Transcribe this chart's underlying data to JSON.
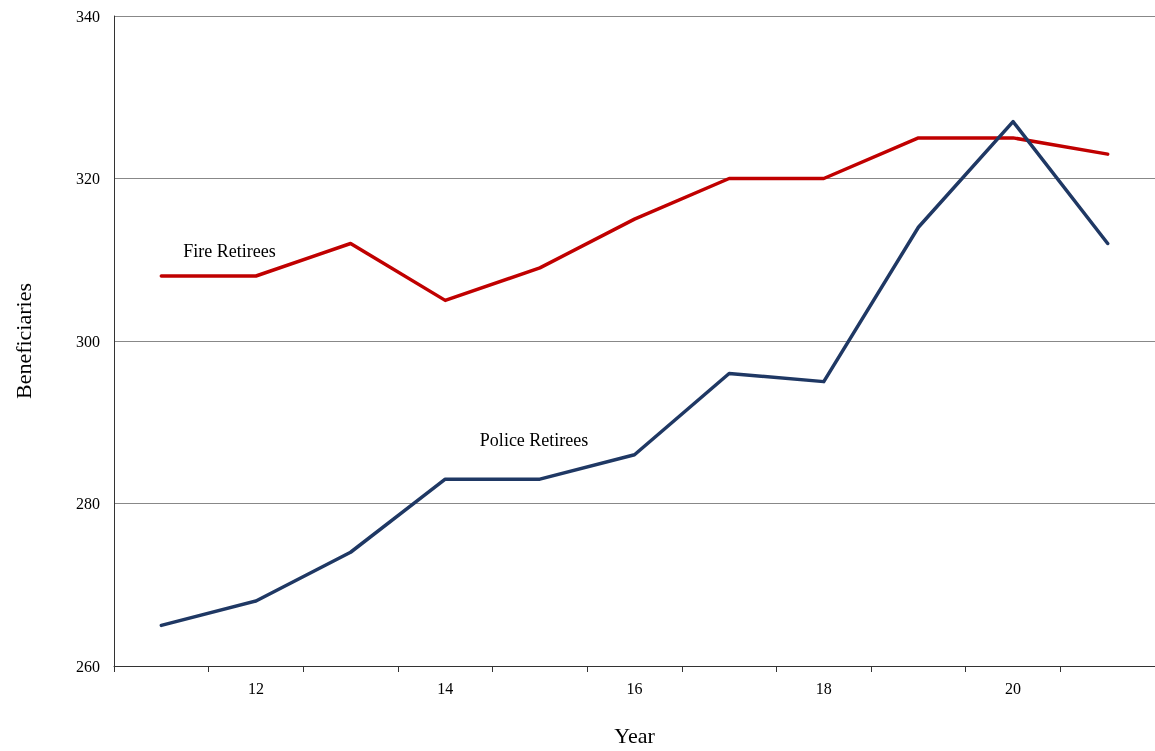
{
  "chart_data": {
    "type": "line",
    "xlabel": "Year",
    "ylabel": "Beneficiaries",
    "categories": [
      null,
      "12",
      null,
      "14",
      null,
      "16",
      null,
      "18",
      null,
      "20",
      null
    ],
    "series": [
      {
        "name": "Fire Retirees",
        "color": "#c00000",
        "values": [
          308,
          308,
          312,
          305,
          309,
          315,
          320,
          320,
          325,
          325,
          323
        ]
      },
      {
        "name": "Police Retirees",
        "color": "#1f3864",
        "values": [
          265,
          268,
          274,
          283,
          283,
          286,
          296,
          295,
          314,
          327,
          312
        ]
      }
    ],
    "ylim": [
      260,
      340
    ],
    "yticks": [
      260,
      280,
      300,
      320,
      340
    ],
    "grid": "y",
    "legend": false,
    "marker": "none",
    "line_style": "solid"
  }
}
